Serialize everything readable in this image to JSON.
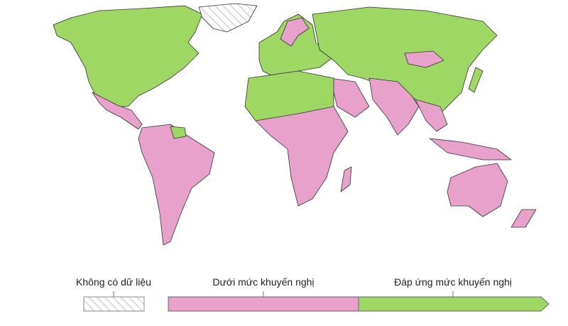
{
  "legend": {
    "no_data": {
      "label": "Không có dữ liệu"
    },
    "items": [
      {
        "label": "Dưới mức khuyến nghị",
        "color": "#e8a1cb"
      },
      {
        "label": "Đáp ứng mức khuyến nghị",
        "color": "#9ed764"
      }
    ]
  }
}
